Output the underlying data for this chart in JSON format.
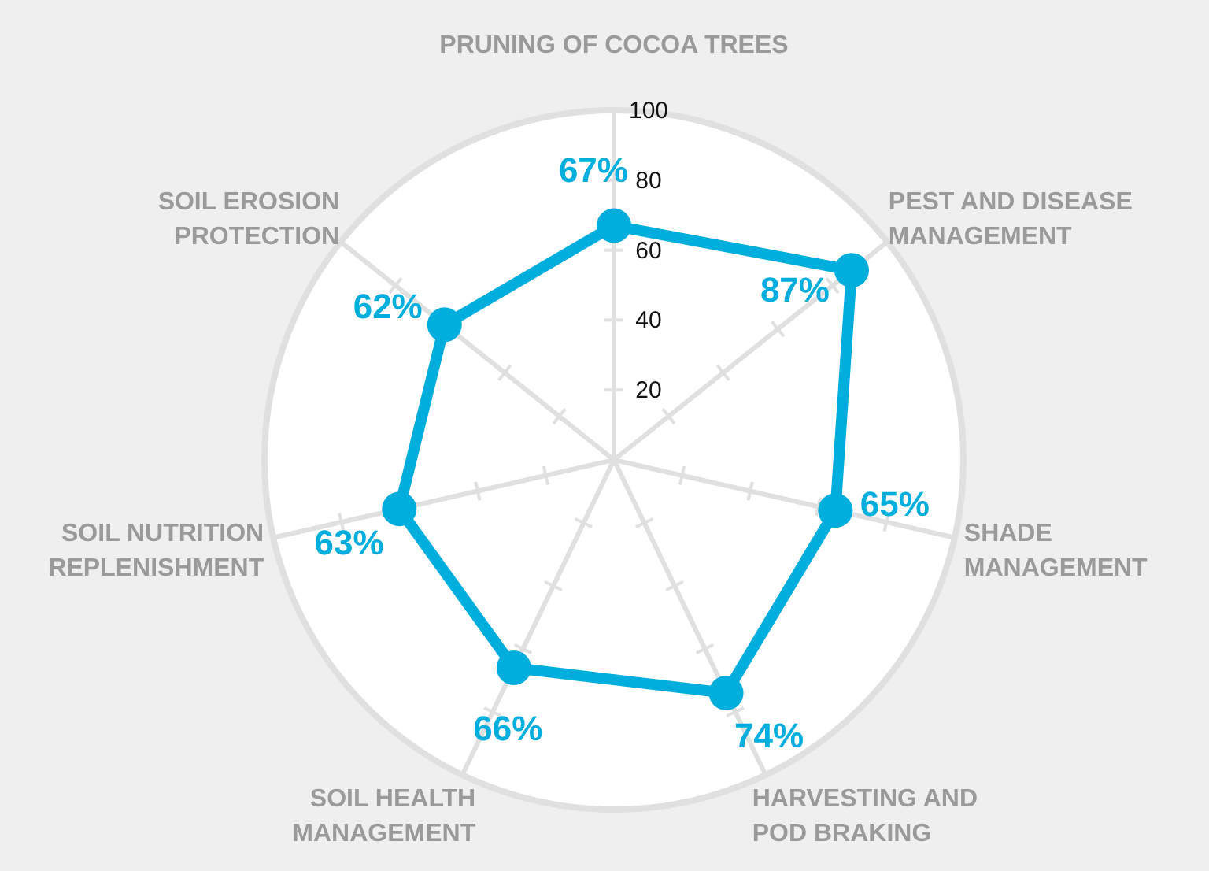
{
  "chart_data": {
    "type": "radar",
    "categories": [
      "PRUNING OF COCOA TREES",
      "PEST AND DISEASE MANAGEMENT",
      "SHADE MANAGEMENT",
      "HARVESTING AND POD BRAKING",
      "SOIL HEALTH MANAGEMENT",
      "SOIL NUTRITION REPLENISHMENT",
      "SOIL EROSION PROTECTION"
    ],
    "series": [
      {
        "color": "#00aede",
        "values": [
          67,
          87,
          65,
          74,
          66,
          63,
          62
        ],
        "value_labels": [
          "67%",
          "87%",
          "65%",
          "74%",
          "66%",
          "63%",
          "62%"
        ]
      }
    ],
    "ylim": [
      0,
      100
    ],
    "yticks": [
      20,
      40,
      60,
      80,
      100
    ],
    "marker": "circle",
    "grid": true
  }
}
